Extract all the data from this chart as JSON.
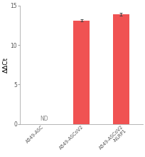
{
  "categories": [
    "A549-ASC",
    "A549-ASCoV2",
    "A549-ASCoV2\n-NLRP1"
  ],
  "values": [
    0,
    13.1,
    13.9
  ],
  "errors": [
    0,
    0.12,
    0.18
  ],
  "bar_color": "#f05252",
  "nd_label": "ND",
  "ylabel": "ΔΔCt",
  "ylim": [
    0,
    15
  ],
  "yticks": [
    0,
    5,
    10,
    15
  ],
  "bar_width": 0.42,
  "figsize": [
    2.05,
    2.2
  ],
  "dpi": 100,
  "background_color": "#ffffff",
  "error_color": "#444444",
  "error_capsize": 1.5,
  "error_linewidth": 0.7,
  "spine_color": "#aaaaaa",
  "tick_color": "#aaaaaa"
}
